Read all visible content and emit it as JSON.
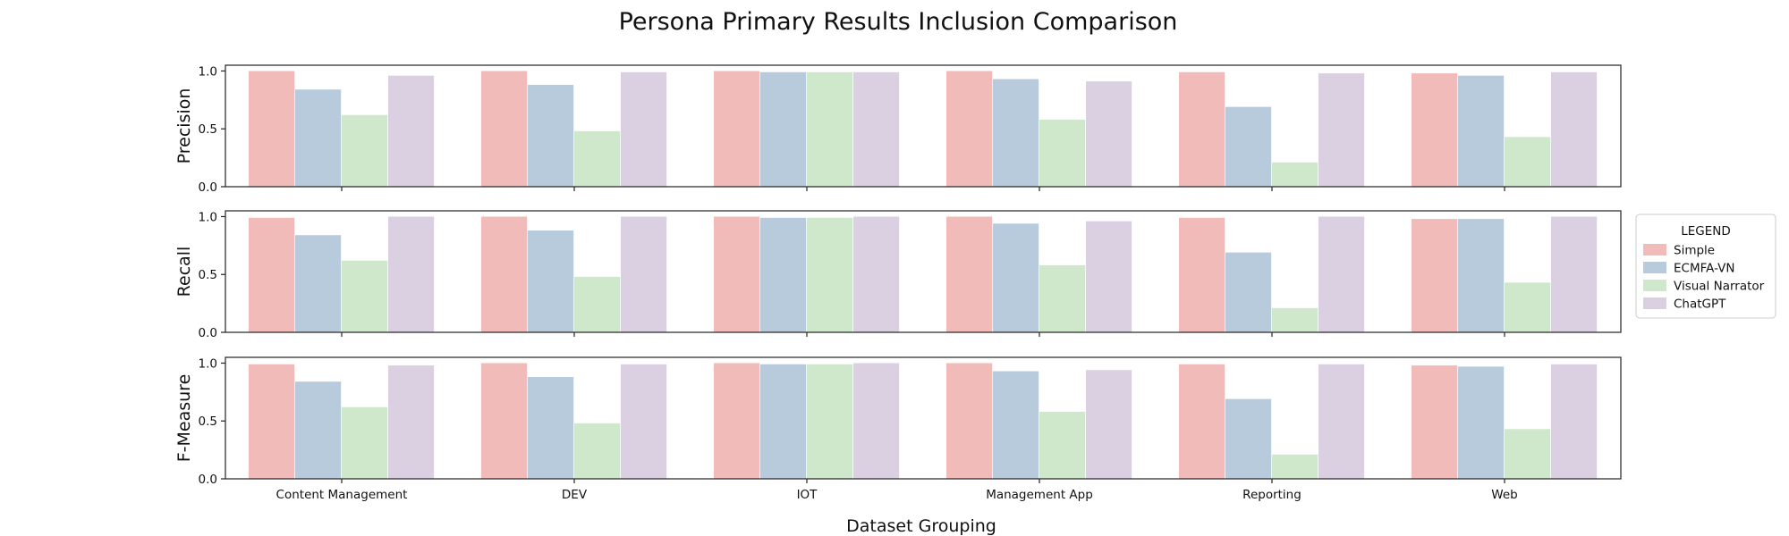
{
  "chart_data": {
    "type": "bar",
    "title": "Persona Primary Results Inclusion Comparison",
    "xlabel": "Dataset Grouping",
    "categories": [
      "Content Management",
      "DEV",
      "IOT",
      "Management App",
      "Reporting",
      "Web"
    ],
    "legend": {
      "title": "LEGEND",
      "placement": "right"
    },
    "ylim": [
      0,
      1.05
    ],
    "yticks": [
      "0.0",
      "0.5",
      "1.0"
    ],
    "series_colors": [
      "#f1bbb9",
      "#b7cbdd",
      "#cfe7cb",
      "#dbcfe2"
    ],
    "series_names": [
      "Simple",
      "ECMFA-VN",
      "Visual Narrator",
      "ChatGPT"
    ],
    "panels": [
      {
        "ylabel": "Precision",
        "series": [
          {
            "name": "Simple",
            "values": [
              1.0,
              1.0,
              1.0,
              1.0,
              0.99,
              0.98
            ]
          },
          {
            "name": "ECMFA-VN",
            "values": [
              0.84,
              0.88,
              0.99,
              0.93,
              0.69,
              0.96
            ]
          },
          {
            "name": "Visual Narrator",
            "values": [
              0.62,
              0.48,
              0.99,
              0.58,
              0.21,
              0.43
            ]
          },
          {
            "name": "ChatGPT",
            "values": [
              0.96,
              0.99,
              0.99,
              0.91,
              0.98,
              0.99
            ]
          }
        ]
      },
      {
        "ylabel": "Recall",
        "series": [
          {
            "name": "Simple",
            "values": [
              0.99,
              1.0,
              1.0,
              1.0,
              0.99,
              0.98
            ]
          },
          {
            "name": "ECMFA-VN",
            "values": [
              0.84,
              0.88,
              0.99,
              0.94,
              0.69,
              0.98
            ]
          },
          {
            "name": "Visual Narrator",
            "values": [
              0.62,
              0.48,
              0.99,
              0.58,
              0.21,
              0.43
            ]
          },
          {
            "name": "ChatGPT",
            "values": [
              1.0,
              1.0,
              1.0,
              0.96,
              1.0,
              1.0
            ]
          }
        ]
      },
      {
        "ylabel": "F-Measure",
        "series": [
          {
            "name": "Simple",
            "values": [
              0.99,
              1.0,
              1.0,
              1.0,
              0.99,
              0.98
            ]
          },
          {
            "name": "ECMFA-VN",
            "values": [
              0.84,
              0.88,
              0.99,
              0.93,
              0.69,
              0.97
            ]
          },
          {
            "name": "Visual Narrator",
            "values": [
              0.62,
              0.48,
              0.99,
              0.58,
              0.21,
              0.43
            ]
          },
          {
            "name": "ChatGPT",
            "values": [
              0.98,
              0.99,
              1.0,
              0.94,
              0.99,
              0.99
            ]
          }
        ]
      }
    ]
  }
}
